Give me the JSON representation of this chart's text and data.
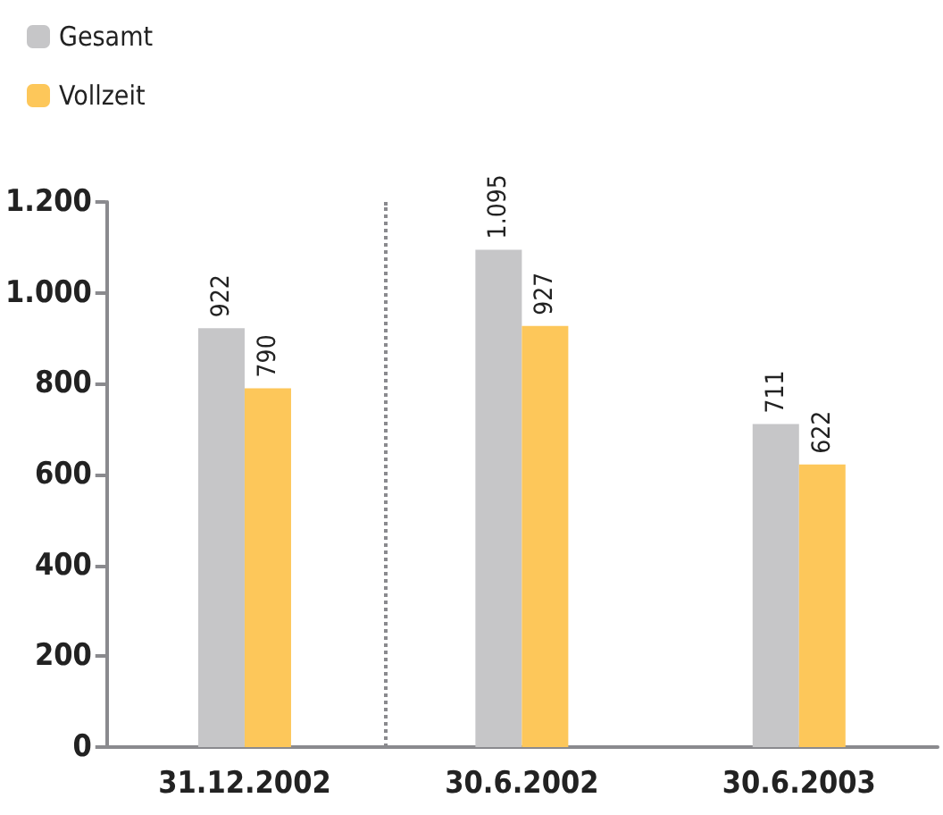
{
  "chart_data": {
    "type": "bar",
    "categories": [
      "31.12.2002",
      "30.6.2002",
      "30.6.2003"
    ],
    "series": [
      {
        "name": "Gesamt",
        "color": "#c6c6c8",
        "values": [
          922,
          1095,
          711
        ],
        "value_labels": [
          "922",
          "1.095",
          "711"
        ]
      },
      {
        "name": "Vollzeit",
        "color": "#fdc75a",
        "values": [
          790,
          927,
          622
        ],
        "value_labels": [
          "790",
          "927",
          "622"
        ]
      }
    ],
    "ylim": [
      0,
      1200
    ],
    "yticks": [
      0,
      200,
      400,
      600,
      800,
      {
        "value": 1000,
        "label": "1.000"
      },
      {
        "value": 1200,
        "label": "1.200"
      }
    ],
    "grid": false,
    "legend": "top left"
  }
}
